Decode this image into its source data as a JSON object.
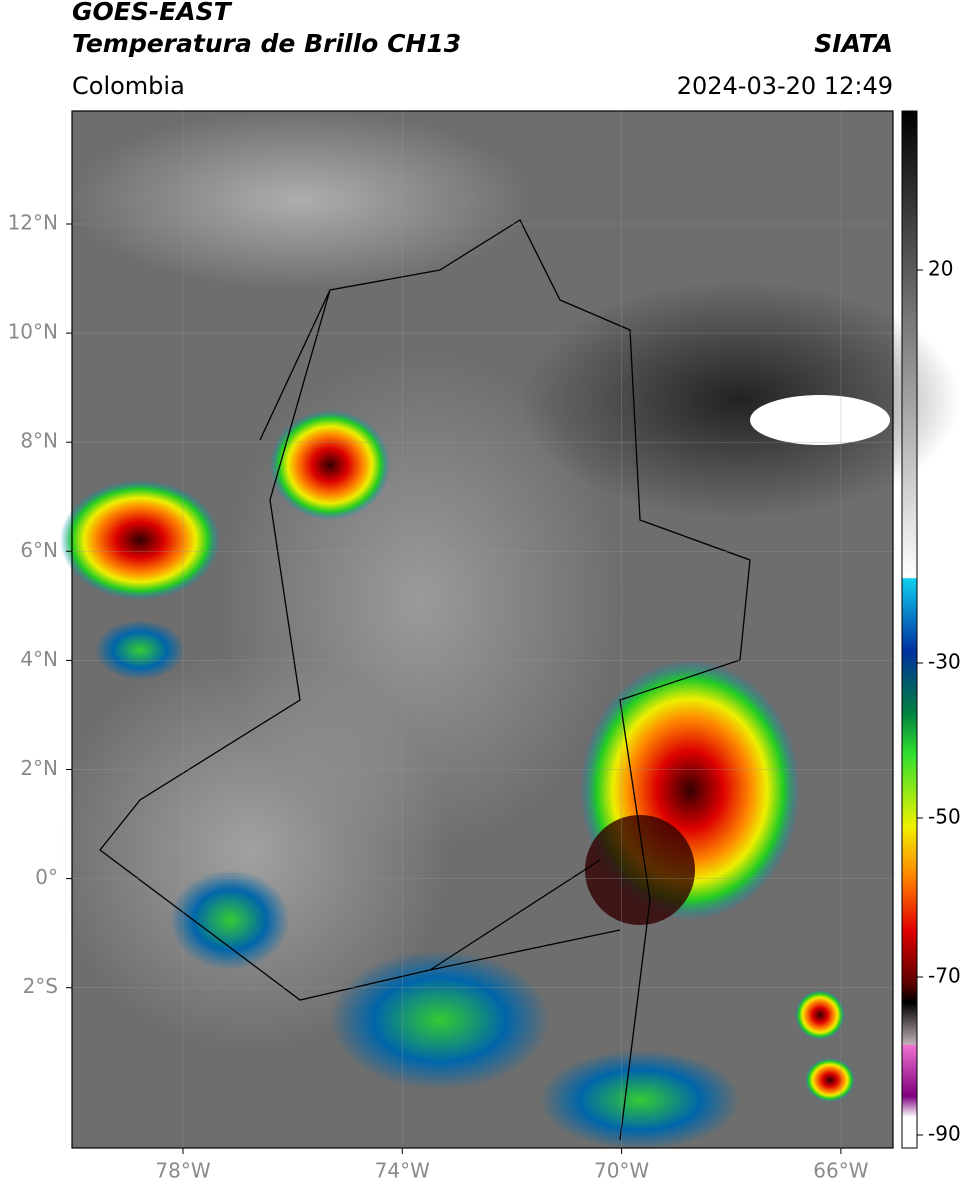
{
  "header": {
    "title": "GOES-EAST",
    "subtitle": "Temperatura de Brillo CH13",
    "region": "Colombia",
    "source": "SIATA",
    "datetime": "2024-03-20 12:49"
  },
  "map": {
    "lat_labels": [
      "12°N",
      "10°N",
      "8°N",
      "6°N",
      "4°N",
      "2°N",
      "0°",
      "2°S"
    ],
    "lon_labels": [
      "78°W",
      "74°W",
      "70°W",
      "66°W"
    ]
  },
  "colorbar": {
    "labels": [
      "20",
      "-30",
      "-50",
      "-70",
      "-90"
    ]
  }
}
